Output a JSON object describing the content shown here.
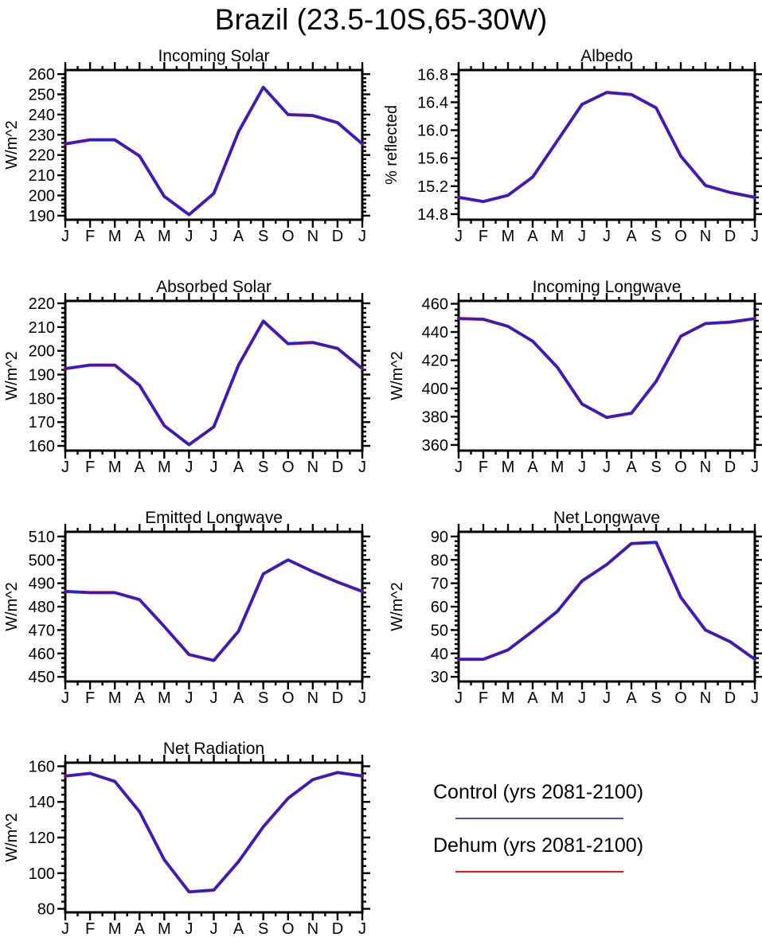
{
  "title": "Brazil (23.5-10S,65-30W)",
  "months": [
    "J",
    "F",
    "M",
    "A",
    "M",
    "J",
    "J",
    "A",
    "S",
    "O",
    "N",
    "D",
    "J"
  ],
  "colors": {
    "axis": "#000000",
    "background": "#FFFFFF",
    "control_line": "#2121DB",
    "dehum_line": "#E51212"
  },
  "legend": {
    "control_label": "Control (yrs 2081-2100)",
    "dehum_label": "Dehum (yrs 2081-2100)",
    "control_line_color": "#4A4AFF",
    "dehum_line_color": "#FF1111",
    "position": "bottom-right"
  },
  "chart_data": [
    {
      "type": "line",
      "title": "Incoming Solar",
      "ylabel": "W/m^2",
      "categories": [
        "J",
        "F",
        "M",
        "A",
        "M",
        "J",
        "J",
        "A",
        "S",
        "O",
        "N",
        "D",
        "J"
      ],
      "ylim": [
        188,
        262
      ],
      "yticks": [
        190,
        200,
        210,
        220,
        230,
        240,
        250,
        260
      ],
      "ytick_labels": [
        "190",
        "200",
        "210",
        "220",
        "230",
        "240",
        "250",
        "260"
      ],
      "minor_tick_step": 2,
      "grid": false,
      "series": [
        {
          "name": "Control (yrs 2081-2100)",
          "color": "#2121DB",
          "values": [
            225.5,
            227.5,
            227.5,
            219.5,
            199.5,
            190.5,
            201,
            231.5,
            253.5,
            240,
            239.5,
            236,
            225.5
          ]
        },
        {
          "name": "Dehum (yrs 2081-2100)",
          "color": "#E51212",
          "values": [
            225.5,
            227.5,
            227.5,
            219.5,
            199.5,
            190.5,
            201,
            231.5,
            253.5,
            240,
            239.5,
            236,
            225.5
          ]
        }
      ]
    },
    {
      "type": "line",
      "title": "Albedo",
      "ylabel": "% reflected",
      "categories": [
        "J",
        "F",
        "M",
        "A",
        "M",
        "J",
        "J",
        "A",
        "S",
        "O",
        "N",
        "D",
        "J"
      ],
      "ylim": [
        14.72,
        16.86
      ],
      "yticks": [
        14.8,
        15.2,
        15.6,
        16.0,
        16.4,
        16.8
      ],
      "ytick_labels": [
        "14.8",
        "15.2",
        "15.6",
        "16.0",
        "16.4",
        "16.8"
      ],
      "minor_tick_step": 0.08,
      "grid": false,
      "series": [
        {
          "name": "Control (yrs 2081-2100)",
          "color": "#2121DB",
          "values": [
            15.04,
            14.98,
            15.07,
            15.33,
            15.85,
            16.37,
            16.54,
            16.51,
            16.32,
            15.63,
            15.21,
            15.11,
            15.04
          ]
        },
        {
          "name": "Dehum (yrs 2081-2100)",
          "color": "#E51212",
          "values": [
            15.04,
            14.98,
            15.07,
            15.33,
            15.85,
            16.37,
            16.54,
            16.51,
            16.32,
            15.63,
            15.21,
            15.11,
            15.04
          ]
        }
      ]
    },
    {
      "type": "line",
      "title": "Absorbed Solar",
      "ylabel": "W/m^2",
      "categories": [
        "J",
        "F",
        "M",
        "A",
        "M",
        "J",
        "J",
        "A",
        "S",
        "O",
        "N",
        "D",
        "J"
      ],
      "ylim": [
        158,
        221
      ],
      "yticks": [
        160,
        170,
        180,
        190,
        200,
        210,
        220
      ],
      "ytick_labels": [
        "160",
        "170",
        "180",
        "190",
        "200",
        "210",
        "220"
      ],
      "minor_tick_step": 2,
      "grid": false,
      "series": [
        {
          "name": "Control (yrs 2081-2100)",
          "color": "#2121DB",
          "values": [
            192.5,
            194,
            194,
            185.5,
            168.5,
            160.5,
            168,
            194,
            212.5,
            203,
            203.5,
            201,
            192.5
          ]
        },
        {
          "name": "Dehum (yrs 2081-2100)",
          "color": "#E51212",
          "values": [
            192.5,
            194,
            194,
            185.5,
            168.5,
            160.5,
            168,
            194,
            212.5,
            203,
            203.5,
            201,
            192.5
          ]
        }
      ]
    },
    {
      "type": "line",
      "title": "Incoming Longwave",
      "ylabel": "W/m^2",
      "categories": [
        "J",
        "F",
        "M",
        "A",
        "M",
        "J",
        "J",
        "A",
        "S",
        "O",
        "N",
        "D",
        "J"
      ],
      "ylim": [
        356,
        462
      ],
      "yticks": [
        360,
        380,
        400,
        420,
        440,
        460
      ],
      "ytick_labels": [
        "360",
        "380",
        "400",
        "420",
        "440",
        "460"
      ],
      "minor_tick_step": 4,
      "grid": false,
      "series": [
        {
          "name": "Control (yrs 2081-2100)",
          "color": "#2121DB",
          "values": [
            449.5,
            449,
            444,
            433.5,
            415,
            389,
            379.5,
            382.5,
            405,
            437,
            446,
            447,
            449.5
          ]
        },
        {
          "name": "Dehum (yrs 2081-2100)",
          "color": "#E51212",
          "values": [
            449.5,
            449,
            444,
            433.5,
            415,
            389,
            379.5,
            382.5,
            405,
            437,
            446,
            447,
            449.5
          ]
        }
      ]
    },
    {
      "type": "line",
      "title": "Emitted Longwave",
      "ylabel": "W/m^2",
      "categories": [
        "J",
        "F",
        "M",
        "A",
        "M",
        "J",
        "J",
        "A",
        "S",
        "O",
        "N",
        "D",
        "J"
      ],
      "ylim": [
        448,
        512
      ],
      "yticks": [
        450,
        460,
        470,
        480,
        490,
        500,
        510
      ],
      "ytick_labels": [
        "450",
        "460",
        "470",
        "480",
        "490",
        "500",
        "510"
      ],
      "minor_tick_step": 2,
      "grid": false,
      "series": [
        {
          "name": "Control (yrs 2081-2100)",
          "color": "#2121DB",
          "values": [
            486.5,
            486,
            486,
            483,
            471.5,
            459.5,
            457,
            469.5,
            494,
            500,
            495,
            490.5,
            486.5
          ]
        },
        {
          "name": "Dehum (yrs 2081-2100)",
          "color": "#E51212",
          "values": [
            486.5,
            486,
            486,
            483,
            471.5,
            459.5,
            457,
            469.5,
            494,
            500,
            495,
            490.5,
            486.5
          ]
        }
      ]
    },
    {
      "type": "line",
      "title": "Net Longwave",
      "ylabel": "W/m^2",
      "categories": [
        "J",
        "F",
        "M",
        "A",
        "M",
        "J",
        "J",
        "A",
        "S",
        "O",
        "N",
        "D",
        "J"
      ],
      "ylim": [
        28,
        92
      ],
      "yticks": [
        30,
        40,
        50,
        60,
        70,
        80,
        90
      ],
      "ytick_labels": [
        "30",
        "40",
        "50",
        "60",
        "70",
        "80",
        "90"
      ],
      "minor_tick_step": 2,
      "grid": false,
      "series": [
        {
          "name": "Control (yrs 2081-2100)",
          "color": "#2121DB",
          "values": [
            37.5,
            37.5,
            41.5,
            49.5,
            58,
            71,
            78,
            87,
            87.5,
            64,
            50,
            45,
            37.5
          ]
        },
        {
          "name": "Dehum (yrs 2081-2100)",
          "color": "#E51212",
          "values": [
            37.5,
            37.5,
            41.5,
            49.5,
            58,
            71,
            78,
            87,
            87.5,
            64,
            50,
            45,
            37.5
          ]
        }
      ]
    },
    {
      "type": "line",
      "title": "Net Radiation",
      "ylabel": "W/m^2",
      "categories": [
        "J",
        "F",
        "M",
        "A",
        "M",
        "J",
        "J",
        "A",
        "S",
        "O",
        "N",
        "D",
        "J"
      ],
      "ylim": [
        78,
        162
      ],
      "yticks": [
        80,
        100,
        120,
        140,
        160
      ],
      "ytick_labels": [
        "80",
        "100",
        "120",
        "140",
        "160"
      ],
      "minor_tick_step": 4,
      "grid": false,
      "series": [
        {
          "name": "Control (yrs 2081-2100)",
          "color": "#2121DB",
          "values": [
            154.5,
            156,
            151.5,
            134.5,
            107.5,
            89.5,
            90.5,
            106.5,
            126,
            142,
            152.5,
            156.5,
            154.5
          ]
        },
        {
          "name": "Dehum (yrs 2081-2100)",
          "color": "#E51212",
          "values": [
            154.5,
            156,
            151.5,
            134.5,
            107.5,
            89.5,
            90.5,
            106.5,
            126,
            142,
            152.5,
            156.5,
            154.5
          ]
        }
      ]
    }
  ]
}
